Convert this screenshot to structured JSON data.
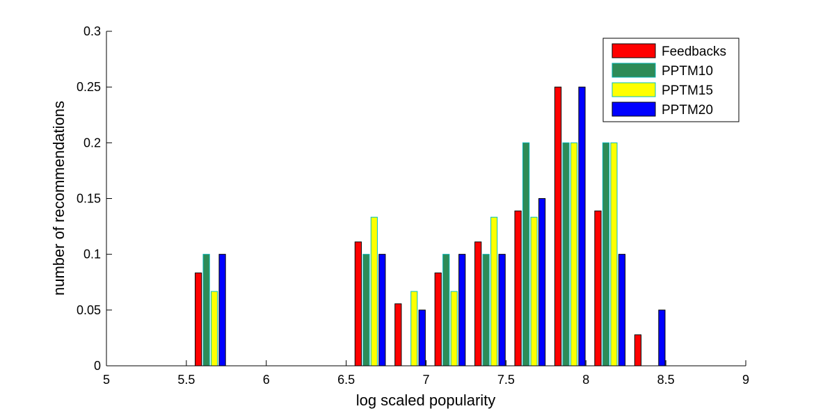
{
  "chart_data": {
    "type": "bar",
    "xlabel": "log scaled popularity",
    "ylabel": "number of recommendations",
    "xlim": [
      5,
      9
    ],
    "ylim": [
      0,
      0.3
    ],
    "xticks": [
      "5",
      "5.5",
      "6",
      "6.5",
      "7",
      "7.5",
      "8",
      "8.5",
      "9"
    ],
    "yticks": [
      "0",
      "0.05",
      "0.1",
      "0.15",
      "0.2",
      "0.25",
      "0.3"
    ],
    "legend_position": "top-right",
    "bin_centers": [
      5.15,
      5.4,
      5.65,
      5.9,
      6.15,
      6.4,
      6.65,
      6.9,
      7.15,
      7.4,
      7.65,
      7.9,
      8.15,
      8.4,
      8.65,
      8.9
    ],
    "series": [
      {
        "name": "Feedbacks",
        "color": "#ff0000",
        "edge": "#000000",
        "values": [
          0,
          0,
          0.0833,
          0,
          0,
          0,
          0.1111,
          0.0556,
          0.0833,
          0.1111,
          0.1389,
          0.25,
          0.1389,
          0.0278,
          0,
          0
        ]
      },
      {
        "name": "PPTM10",
        "color": "#2e8b57",
        "edge": "#00b0b0",
        "values": [
          0,
          0,
          0.1,
          0,
          0,
          0,
          0.1,
          0,
          0.1,
          0.1,
          0.2,
          0.2,
          0.2,
          0,
          0,
          0
        ]
      },
      {
        "name": "PPTM15",
        "color": "#ffff00",
        "edge": "#00c0c0",
        "values": [
          0,
          0,
          0.0667,
          0,
          0,
          0,
          0.1333,
          0.0667,
          0.0667,
          0.1333,
          0.1333,
          0.2,
          0.2,
          0,
          0,
          0
        ]
      },
      {
        "name": "PPTM20",
        "color": "#0000ff",
        "edge": "#000000",
        "values": [
          0,
          0,
          0.1,
          0,
          0,
          0,
          0.1,
          0.05,
          0.1,
          0.1,
          0.15,
          0.25,
          0.1,
          0.05,
          0,
          0
        ]
      }
    ]
  }
}
